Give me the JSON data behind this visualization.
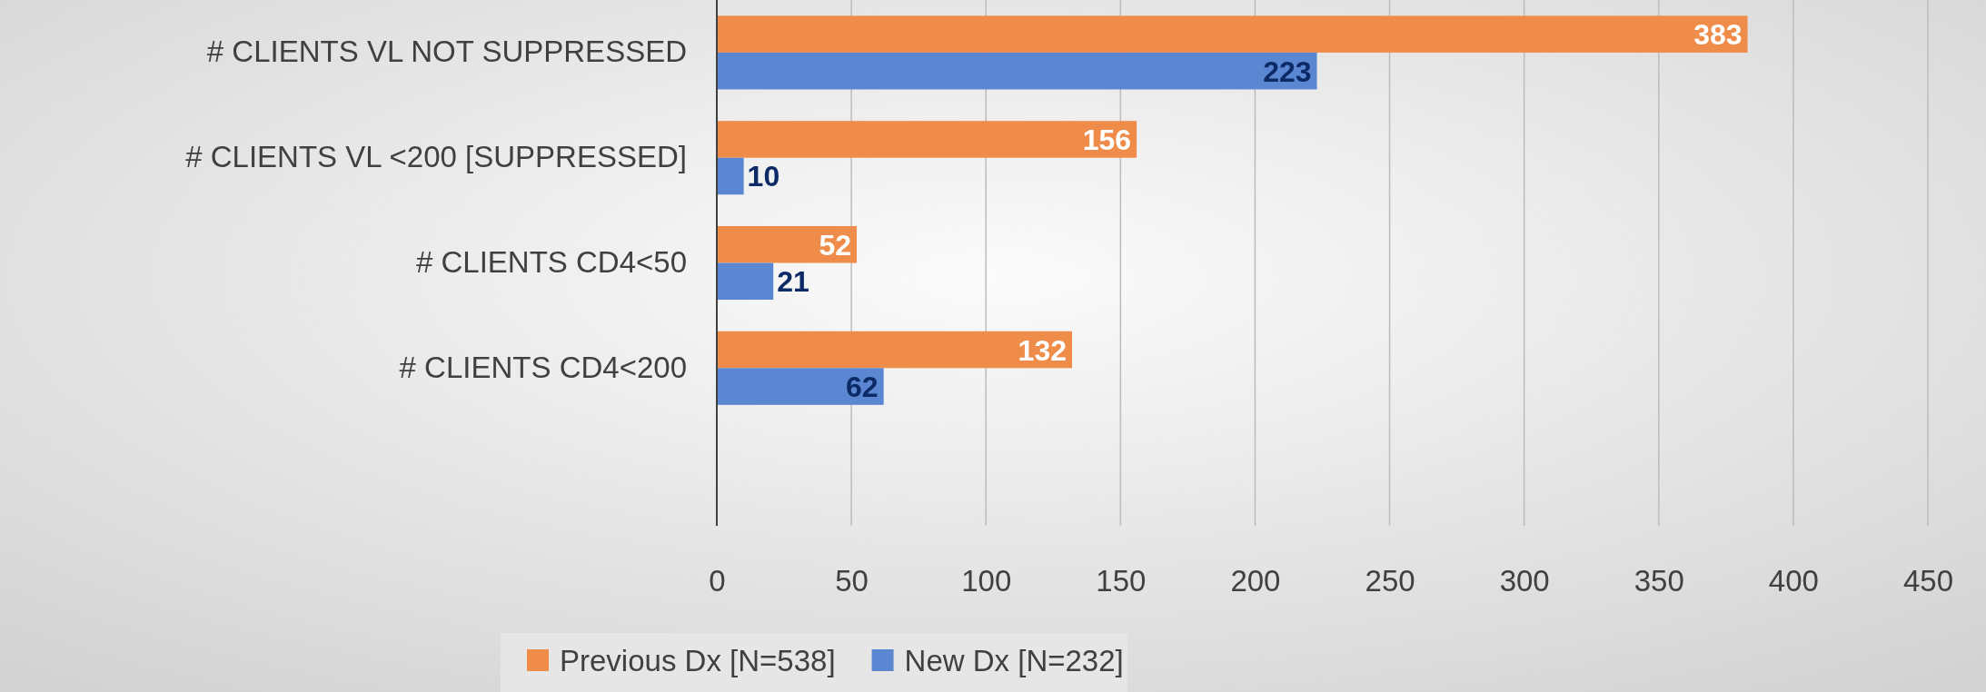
{
  "chart_data": {
    "type": "bar",
    "orientation": "horizontal",
    "categories": [
      "# CLIENTS VL NOT SUPPRESSED",
      "# CLIENTS VL <200 [SUPPRESSED]",
      "# CLIENTS CD4<50",
      "# CLIENTS CD4<200"
    ],
    "series": [
      {
        "name": "Previous Dx [N=538]",
        "color": "#f08c4a",
        "values": [
          383,
          156,
          52,
          132
        ]
      },
      {
        "name": "New Dx [N=232]",
        "color": "#5b86d2",
        "values": [
          223,
          10,
          21,
          62
        ]
      }
    ],
    "xlim": [
      0,
      450
    ],
    "xticks": [
      0,
      50,
      100,
      150,
      200,
      250,
      300,
      350,
      400,
      450
    ],
    "grid": "x",
    "legend": "bottom",
    "data_labels": true
  }
}
